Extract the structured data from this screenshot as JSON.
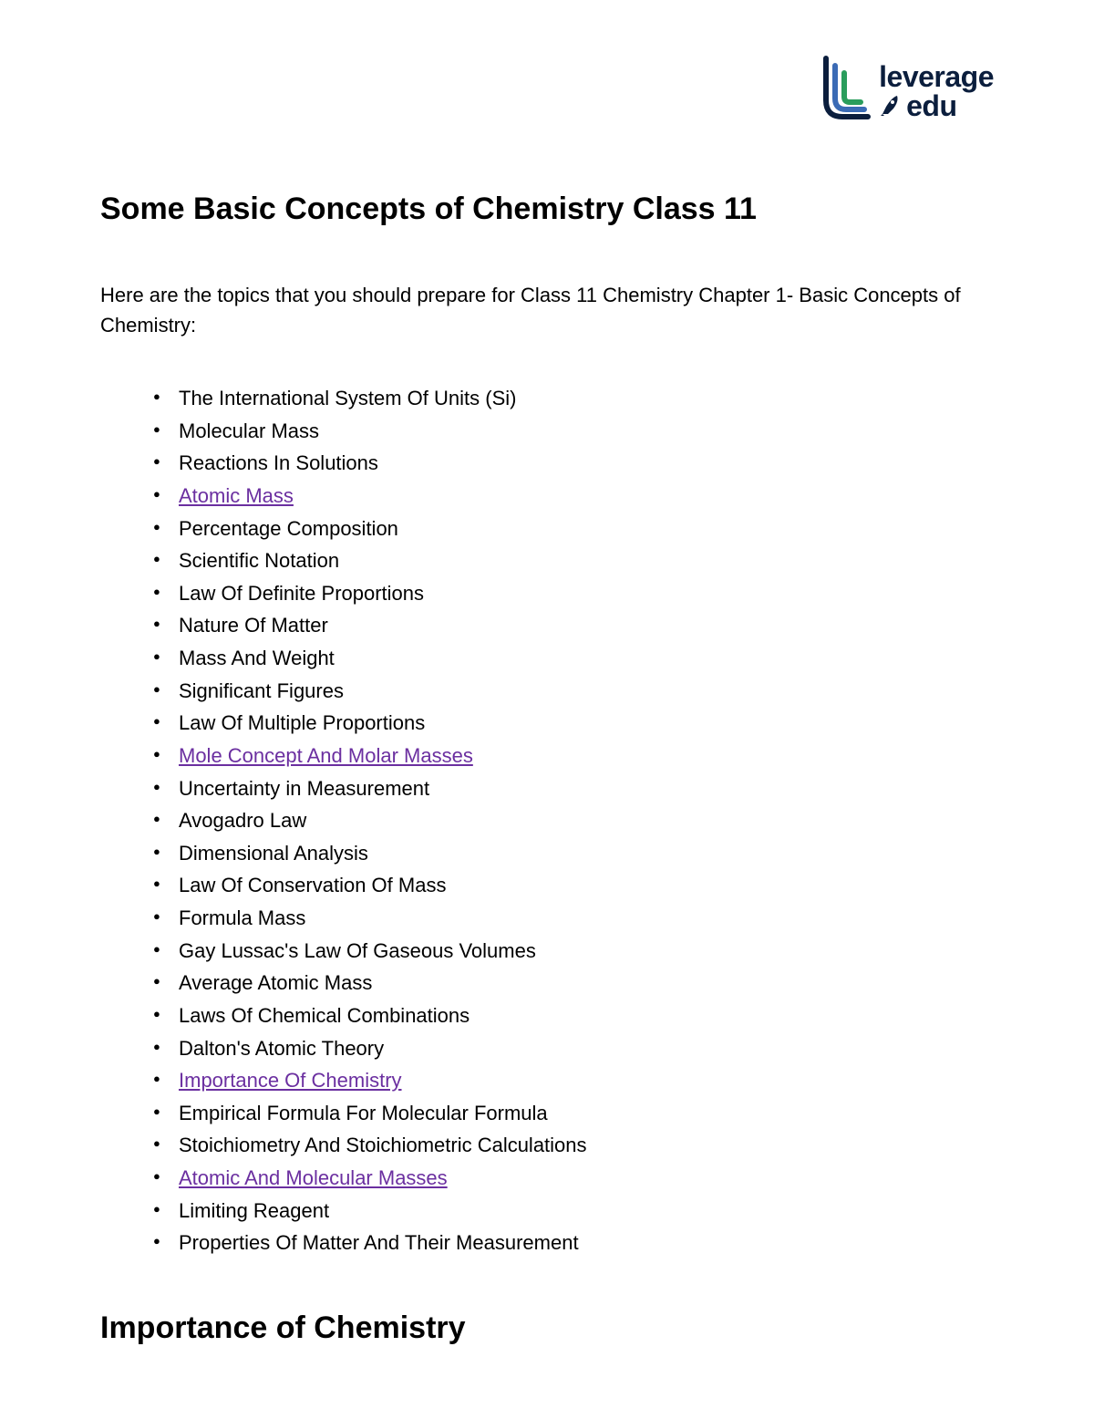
{
  "logo": {
    "line1": "leverage",
    "line2": "edu",
    "text_color": "#0b1e3d",
    "bar_colors": [
      "#2a9d5c",
      "#3b6bb5",
      "#0b1e3d"
    ],
    "rocket_color": "#0b1e3d"
  },
  "title": "Some Basic Concepts of Chemistry Class 11",
  "intro": "Here are the topics that you should prepare for Class 11 Chemistry Chapter 1- Basic Concepts of Chemistry:",
  "topics": [
    {
      "text": "The International System Of Units (Si)",
      "link": false
    },
    {
      "text": "Molecular Mass",
      "link": false
    },
    {
      "text": "Reactions In Solutions",
      "link": false
    },
    {
      "text": "Atomic Mass",
      "link": true
    },
    {
      "text": "Percentage Composition",
      "link": false
    },
    {
      "text": "Scientific Notation",
      "link": false
    },
    {
      "text": "Law Of Definite Proportions",
      "link": false
    },
    {
      "text": "Nature Of Matter",
      "link": false
    },
    {
      "text": "Mass And Weight",
      "link": false
    },
    {
      "text": "Significant Figures",
      "link": false
    },
    {
      "text": "Law Of Multiple Proportions",
      "link": false
    },
    {
      "text": "Mole Concept And Molar Masses",
      "link": true
    },
    {
      "text": "Uncertainty in Measurement",
      "link": false
    },
    {
      "text": "Avogadro Law",
      "link": false
    },
    {
      "text": "Dimensional Analysis",
      "link": false
    },
    {
      "text": "Law Of Conservation Of Mass",
      "link": false
    },
    {
      "text": "Formula Mass",
      "link": false
    },
    {
      "text": "Gay Lussac's Law Of Gaseous Volumes",
      "link": false
    },
    {
      "text": "Average Atomic Mass",
      "link": false
    },
    {
      "text": "Laws Of Chemical Combinations",
      "link": false
    },
    {
      "text": "Dalton's Atomic Theory",
      "link": false
    },
    {
      "text": "Importance Of Chemistry",
      "link": true
    },
    {
      "text": "Empirical Formula For Molecular Formula",
      "link": false
    },
    {
      "text": "Stoichiometry And Stoichiometric Calculations",
      "link": false
    },
    {
      "text": "Atomic And Molecular Masses",
      "link": true
    },
    {
      "text": "Limiting Reagent",
      "link": false
    },
    {
      "text": "Properties Of Matter And Their Measurement",
      "link": false
    }
  ],
  "subtitle": "Importance of Chemistry",
  "link_color": "#6b2fa0",
  "text_color": "#000000",
  "background_color": "#ffffff",
  "font_size_title": 34,
  "font_size_body": 22
}
